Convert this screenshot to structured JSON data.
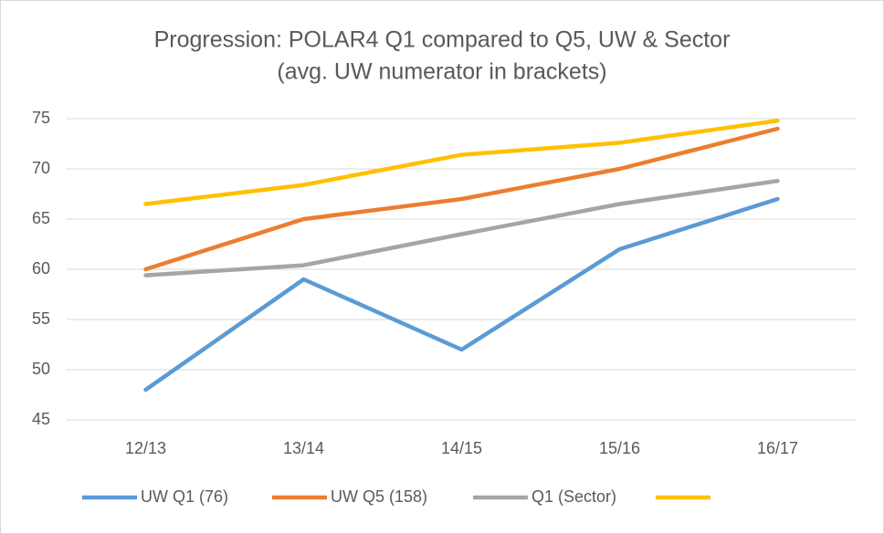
{
  "chart_data": {
    "type": "line",
    "title": "Progression: POLAR4 Q1 compared to Q5, UW & Sector",
    "subtitle": "(avg. UW numerator in brackets)",
    "categories": [
      "12/13",
      "13/14",
      "14/15",
      "15/16",
      "16/17"
    ],
    "series": [
      {
        "name": "UW Q1 (76)",
        "color": "#5b9bd5",
        "values": [
          48,
          59,
          52,
          62,
          67
        ]
      },
      {
        "name": "UW Q5 (158)",
        "color": "#ed7d31",
        "values": [
          60,
          65,
          67,
          70,
          74
        ]
      },
      {
        "name": "Q1 (Sector)",
        "color": "#a5a5a5",
        "values": [
          59.4,
          60.4,
          63.5,
          66.5,
          68.8
        ]
      },
      {
        "color": "#ffc000",
        "values": [
          66.5,
          68.4,
          71.4,
          72.6,
          74.8
        ]
      }
    ],
    "ylim": [
      45,
      75
    ],
    "yticks": [
      45,
      50,
      55,
      60,
      65,
      70,
      75
    ],
    "grid": true,
    "legend": "bottom"
  }
}
